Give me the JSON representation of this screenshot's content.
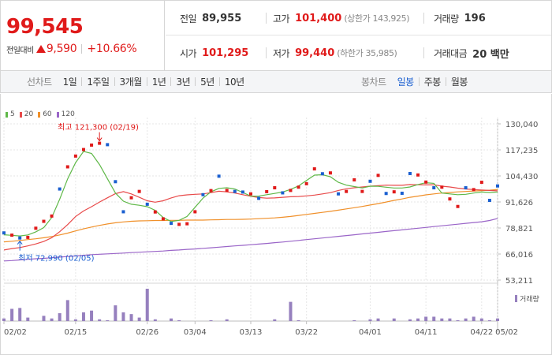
{
  "quote": {
    "price": "99,545",
    "change_label": "전일대비",
    "change_value": "9,590",
    "change_rate": "+10.66%",
    "prev_close_label": "전일",
    "prev_close": "89,955",
    "high_label": "고가",
    "high": "101,400",
    "upper_limit_label": "상한가",
    "upper_limit": "143,925",
    "volume_label": "거래량",
    "volume": "196",
    "open_label": "시가",
    "open": "101,295",
    "low_label": "저가",
    "low": "99,440",
    "lower_limit_label": "하한가",
    "lower_limit": "35,985",
    "amount_label": "거래대금",
    "amount": "20 백만"
  },
  "toolbar": {
    "line_label": "선차트",
    "line_periods": [
      "1일",
      "1주일",
      "3개월",
      "1년",
      "3년",
      "5년",
      "10년"
    ],
    "candle_label": "봉차트",
    "candle_periods": [
      "일봉",
      "주봉",
      "월봉"
    ],
    "active_candle": 0
  },
  "colors": {
    "up": "#e01a1a",
    "down": "#1a5fd0",
    "ma5": "#5fb848",
    "ma20": "#e84a4a",
    "ma60": "#f0902a",
    "ma120": "#9a65c8",
    "volume": "#9680be"
  },
  "chart_data": {
    "type": "candlestick",
    "ylim": [
      53211,
      130040
    ],
    "y_ticks": [
      "130,040",
      "117,235",
      "104,430",
      "91,626",
      "78,821",
      "66,016",
      "53,211"
    ],
    "x_ticks": [
      "02/02",
      "02/15",
      "02/26",
      "03/04",
      "03/13",
      "03/22",
      "04/01",
      "04/11",
      "04/22",
      "05/02"
    ],
    "legend": [
      "5",
      "20",
      "60",
      "120"
    ],
    "annotations": {
      "max_text": "최고 121,300 (02/19)",
      "min_text": "최저 72,990 (02/05)"
    },
    "volume_label": "거래량",
    "candles": [
      {
        "c": 76400,
        "d": "down",
        "v": 3
      },
      {
        "c": 75300,
        "d": "up",
        "v": 14
      },
      {
        "c": 73900,
        "d": "down",
        "v": 15
      },
      {
        "c": 74200,
        "d": "up",
        "v": 4
      },
      {
        "c": 78700,
        "d": "up",
        "v": 0
      },
      {
        "c": 82100,
        "d": "up",
        "v": 6
      },
      {
        "c": 84700,
        "d": "up",
        "v": 3
      },
      {
        "c": 98000,
        "d": "down",
        "v": 9
      },
      {
        "c": 108900,
        "d": "up",
        "v": 24
      },
      {
        "c": 114200,
        "d": "up",
        "v": 2
      },
      {
        "c": 117400,
        "d": "up",
        "v": 10
      },
      {
        "c": 119600,
        "d": "up",
        "v": 12
      },
      {
        "c": 120500,
        "d": "up",
        "v": 2
      },
      {
        "c": 119800,
        "d": "down",
        "v": 1
      },
      {
        "c": 101600,
        "d": "down",
        "v": 18
      },
      {
        "c": 86800,
        "d": "down",
        "v": 10
      },
      {
        "c": 93700,
        "d": "up",
        "v": 8
      },
      {
        "c": 96800,
        "d": "up",
        "v": 4
      },
      {
        "c": 90500,
        "d": "down",
        "v": 37
      },
      {
        "c": 86700,
        "d": "up",
        "v": 2
      },
      {
        "c": 83300,
        "d": "up",
        "v": 0
      },
      {
        "c": 81100,
        "d": "down",
        "v": 3
      },
      {
        "c": 80600,
        "d": "up",
        "v": 1
      },
      {
        "c": 80900,
        "d": "up",
        "v": 0
      },
      {
        "c": 86800,
        "d": "up",
        "v": 0
      },
      {
        "c": 95200,
        "d": "down",
        "v": 0
      },
      {
        "c": 97200,
        "d": "up",
        "v": 1
      },
      {
        "c": 104300,
        "d": "down",
        "v": 0
      },
      {
        "c": 97300,
        "d": "up",
        "v": 2
      },
      {
        "c": 96800,
        "d": "down",
        "v": 0
      },
      {
        "c": 96500,
        "d": "down",
        "v": 0
      },
      {
        "c": 95600,
        "d": "up",
        "v": 0
      },
      {
        "c": 93400,
        "d": "down",
        "v": 0
      },
      {
        "c": 96700,
        "d": "up",
        "v": 0
      },
      {
        "c": 98600,
        "d": "up",
        "v": 2
      },
      {
        "c": 96100,
        "d": "down",
        "v": 0
      },
      {
        "c": 97300,
        "d": "up",
        "v": 22
      },
      {
        "c": 98900,
        "d": "up",
        "v": 1
      },
      {
        "c": 100600,
        "d": "up",
        "v": 0
      },
      {
        "c": 107900,
        "d": "up",
        "v": 0
      },
      {
        "c": 105500,
        "d": "down",
        "v": 0
      },
      {
        "c": 105900,
        "d": "up",
        "v": 0
      },
      {
        "c": 95600,
        "d": "down",
        "v": 0
      },
      {
        "c": 96800,
        "d": "up",
        "v": 0
      },
      {
        "c": 102500,
        "d": "up",
        "v": 1
      },
      {
        "c": 96800,
        "d": "up",
        "v": 0
      },
      {
        "c": 101800,
        "d": "down",
        "v": 2
      },
      {
        "c": 104700,
        "d": "up",
        "v": 3
      },
      {
        "c": 95800,
        "d": "down",
        "v": 0
      },
      {
        "c": 96600,
        "d": "up",
        "v": 3
      },
      {
        "c": 95900,
        "d": "down",
        "v": 0
      },
      {
        "c": 105600,
        "d": "down",
        "v": 2
      },
      {
        "c": 104900,
        "d": "up",
        "v": 3
      },
      {
        "c": 101400,
        "d": "up",
        "v": 5
      },
      {
        "c": 98600,
        "d": "down",
        "v": 5
      },
      {
        "c": 98900,
        "d": "up",
        "v": 3
      },
      {
        "c": 93100,
        "d": "up",
        "v": 3
      },
      {
        "c": 89400,
        "d": "up",
        "v": 1
      },
      {
        "c": 98600,
        "d": "down",
        "v": 3
      },
      {
        "c": 97700,
        "d": "up",
        "v": 5
      },
      {
        "c": 101300,
        "d": "up",
        "v": 3
      },
      {
        "c": 92400,
        "d": "down",
        "v": 1
      },
      {
        "c": 99500,
        "d": "down",
        "v": 3
      }
    ],
    "ma5": [
      75500,
      75200,
      74900,
      75400,
      76900,
      79000,
      84000,
      93000,
      103000,
      111000,
      116500,
      115500,
      110000,
      103000,
      96000,
      92000,
      90500,
      90000,
      89300,
      87500,
      84000,
      82000,
      82600,
      84500,
      89000,
      93500,
      96600,
      98300,
      98600,
      98000,
      96300,
      94500,
      94500,
      95200,
      95800,
      96500,
      97800,
      99500,
      102200,
      104800,
      105000,
      104000,
      101300,
      99900,
      99200,
      98500,
      99400,
      99300,
      98900,
      98500,
      98500,
      99000,
      100200,
      101100,
      100800,
      96000,
      95600,
      95200,
      95400,
      96000,
      96500,
      96300,
      96500
    ],
    "ma20": [
      68000,
      68700,
      69200,
      70000,
      71000,
      72200,
      74000,
      77000,
      80500,
      84500,
      87200,
      89300,
      91600,
      93700,
      95700,
      96700,
      95600,
      93900,
      92200,
      91500,
      92200,
      93600,
      94700,
      95100,
      95400,
      95600,
      96200,
      96900,
      96600,
      96000,
      95200,
      94400,
      93800,
      93500,
      93600,
      93900,
      94200,
      94300,
      94600,
      95000,
      95600,
      96200,
      97300,
      98100,
      98600,
      99000,
      99400,
      99600,
      99900,
      99800,
      99800,
      100200,
      100100,
      100000,
      100100,
      99400,
      99000,
      98400,
      98000,
      97700,
      97500,
      97300,
      97100
    ],
    "ma60": [
      72000,
      72300,
      72700,
      73100,
      73500,
      74000,
      74600,
      75400,
      76300,
      77400,
      78400,
      79300,
      80100,
      80800,
      81400,
      81800,
      82100,
      82300,
      82400,
      82500,
      82500,
      82600,
      82600,
      82700,
      82700,
      82700,
      82800,
      82900,
      83000,
      83000,
      83100,
      83200,
      83400,
      83600,
      83800,
      84100,
      84500,
      85000,
      85500,
      86000,
      86500,
      87000,
      87600,
      88200,
      88800,
      89400,
      90100,
      90800,
      91600,
      92400,
      93100,
      93900,
      94500,
      95100,
      95600,
      96000,
      96300,
      96600,
      96800,
      97000,
      97200,
      97400,
      97800
    ],
    "ma120": [
      62600,
      62800,
      63100,
      63400,
      63700,
      63900,
      64200,
      64500,
      64800,
      65100,
      65400,
      65700,
      65900,
      66100,
      66300,
      66500,
      66700,
      66900,
      67100,
      67300,
      67500,
      67800,
      68000,
      68300,
      68500,
      68800,
      69100,
      69400,
      69700,
      70000,
      70300,
      70600,
      70900,
      71200,
      71600,
      71900,
      72300,
      72700,
      73100,
      73500,
      73900,
      74300,
      74700,
      75100,
      75500,
      75900,
      76300,
      76700,
      77100,
      77500,
      77900,
      78300,
      78700,
      79100,
      79500,
      79900,
      80300,
      80700,
      81100,
      81500,
      81900,
      82500,
      83500
    ]
  }
}
